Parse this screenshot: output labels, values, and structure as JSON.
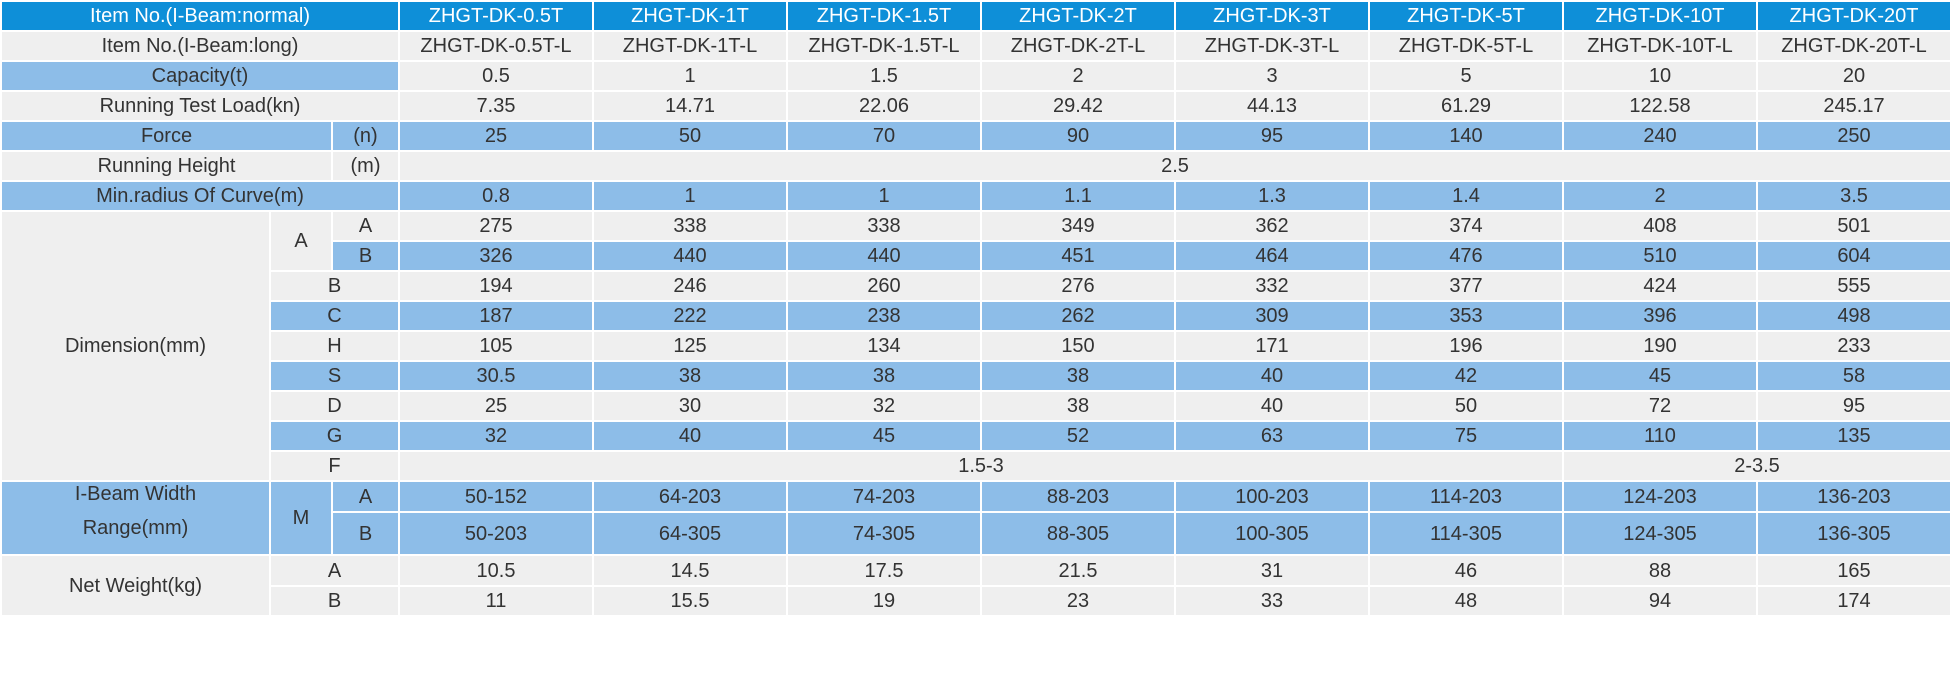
{
  "header": {
    "label": "Item No.(I-Beam:normal)",
    "models": [
      "ZHGT-DK-0.5T",
      "ZHGT-DK-1T",
      "ZHGT-DK-1.5T",
      "ZHGT-DK-2T",
      "ZHGT-DK-3T",
      "ZHGT-DK-5T",
      "ZHGT-DK-10T",
      "ZHGT-DK-20T"
    ]
  },
  "long_models": {
    "label": "Item No.(I-Beam:long)",
    "values": [
      "ZHGT-DK-0.5T-L",
      "ZHGT-DK-1T-L",
      "ZHGT-DK-1.5T-L",
      "ZHGT-DK-2T-L",
      "ZHGT-DK-3T-L",
      "ZHGT-DK-5T-L",
      "ZHGT-DK-10T-L",
      "ZHGT-DK-20T-L"
    ]
  },
  "capacity": {
    "label": "Capacity(t)",
    "values": [
      "0.5",
      "1",
      "1.5",
      "2",
      "3",
      "5",
      "10",
      "20"
    ]
  },
  "test_load": {
    "label": "Running Test Load(kn)",
    "values": [
      "7.35",
      "14.71",
      "22.06",
      "29.42",
      "44.13",
      "61.29",
      "122.58",
      "245.17"
    ]
  },
  "force": {
    "label": "Force",
    "unit": "(n)",
    "values": [
      "25",
      "50",
      "70",
      "90",
      "95",
      "140",
      "240",
      "250"
    ]
  },
  "running_height": {
    "label": "Running Height",
    "unit": "(m)",
    "value": "2.5"
  },
  "min_radius": {
    "label": "Min.radius Of Curve(m)",
    "values": [
      "0.8",
      "1",
      "1",
      "1.1",
      "1.3",
      "1.4",
      "2",
      "3.5"
    ]
  },
  "dimension": {
    "label": "Dimension(mm)",
    "a_label": "A",
    "a_rows": [
      {
        "sub": "A",
        "values": [
          "275",
          "338",
          "338",
          "349",
          "362",
          "374",
          "408",
          "501"
        ]
      },
      {
        "sub": "B",
        "values": [
          "326",
          "440",
          "440",
          "451",
          "464",
          "476",
          "510",
          "604"
        ]
      }
    ],
    "rows": [
      {
        "key": "B",
        "values": [
          "194",
          "246",
          "260",
          "276",
          "332",
          "377",
          "424",
          "555"
        ]
      },
      {
        "key": "C",
        "values": [
          "187",
          "222",
          "238",
          "262",
          "309",
          "353",
          "396",
          "498"
        ]
      },
      {
        "key": "H",
        "values": [
          "105",
          "125",
          "134",
          "150",
          "171",
          "196",
          "190",
          "233"
        ]
      },
      {
        "key": "S",
        "values": [
          "30.5",
          "38",
          "38",
          "38",
          "40",
          "42",
          "45",
          "58"
        ]
      },
      {
        "key": "D",
        "values": [
          "25",
          "30",
          "32",
          "38",
          "40",
          "50",
          "72",
          "95"
        ]
      },
      {
        "key": "G",
        "values": [
          "32",
          "40",
          "45",
          "52",
          "63",
          "75",
          "110",
          "135"
        ]
      }
    ],
    "f": {
      "key": "F",
      "value_1": "1.5-3",
      "value_2": "2-3.5"
    }
  },
  "beam_width": {
    "label_line1": "I-Beam Width",
    "label_line2": "Range(mm)",
    "m_label": "M",
    "rows": [
      {
        "sub": "A",
        "values": [
          "50-152",
          "64-203",
          "74-203",
          "88-203",
          "100-203",
          "114-203",
          "124-203",
          "136-203"
        ]
      },
      {
        "sub": "B",
        "values": [
          "50-203",
          "64-305",
          "74-305",
          "88-305",
          "100-305",
          "114-305",
          "124-305",
          "136-305"
        ]
      }
    ]
  },
  "net_weight": {
    "label": "Net Weight(kg)",
    "rows": [
      {
        "sub": "A",
        "values": [
          "10.5",
          "14.5",
          "17.5",
          "21.5",
          "31",
          "46",
          "88",
          "165"
        ]
      },
      {
        "sub": "B",
        "values": [
          "11",
          "15.5",
          "19",
          "23",
          "33",
          "48",
          "94",
          "174"
        ]
      }
    ]
  }
}
